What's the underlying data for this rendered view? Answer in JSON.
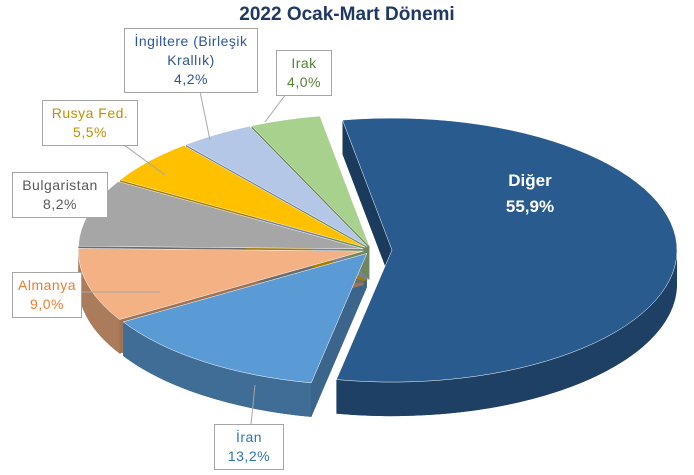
{
  "chart_data": {
    "type": "pie",
    "title": "2022 Ocak-Mart Dönemi",
    "categories": [
      "Diğer",
      "İran",
      "Almanya",
      "Bulgaristan",
      "Rusya Fed.",
      "İngiltere (Birleşik Krallık)",
      "Irak"
    ],
    "values": [
      55.9,
      13.2,
      9.0,
      8.2,
      5.5,
      4.2,
      4.0
    ],
    "value_labels": [
      "55,9%",
      "13,2%",
      "9,0%",
      "8,2%",
      "5,5%",
      "4,2%",
      "4,0%"
    ],
    "colors": [
      "#2a5b8f",
      "#5b9bd5",
      "#f4b183",
      "#a6a6a6",
      "#ffc000",
      "#b4c7e7",
      "#a9d18e"
    ],
    "label_colors": [
      "#ffffff",
      "#2e75b6",
      "#ed7d31",
      "#595959",
      "#bf9000",
      "#2f5597",
      "#548235"
    ]
  }
}
